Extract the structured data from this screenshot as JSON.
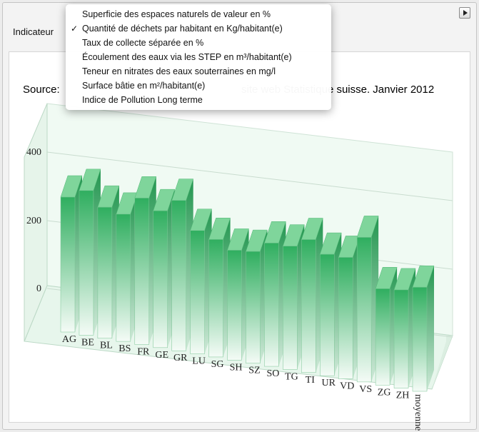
{
  "indicator": {
    "label": "Indicateur",
    "menu_items": [
      {
        "label": "Superficie des espaces naturels de valeur en %",
        "checked": false
      },
      {
        "label": "Quantité de déchets par habitant en Kg/habitant(e)",
        "checked": true
      },
      {
        "label": "Taux de collecte séparée en %",
        "checked": false
      },
      {
        "label": "Écoulement des eaux via les STEP en m³/habitant(e)",
        "checked": false
      },
      {
        "label": "Teneur en nitrates des eaux souterraines en mg/l",
        "checked": false
      },
      {
        "label": "Surface bâtie en m²/habitant(e)",
        "checked": false
      },
      {
        "label": "Indice de Pollution Long terme",
        "checked": false
      }
    ],
    "check_glyph": "✓"
  },
  "source_line": {
    "prefix": "Source:",
    "suffix": "site web Statistique suisse. Janvier 2012"
  },
  "colors": {
    "bar_top": "#2fae5f",
    "bar_bottom": "#f4fbf6",
    "bar_side": "#3a9e5c",
    "bar_cap": "#7fd59b",
    "floor": "#e7f6ec",
    "backwall": "#f0faf3"
  },
  "chart_data": {
    "type": "bar",
    "categories": [
      "AG",
      "BE",
      "BL",
      "BS",
      "FR",
      "GE",
      "GR",
      "LU",
      "SG",
      "SH",
      "SZ",
      "SO",
      "TG",
      "TI",
      "UR",
      "VD",
      "VS",
      "ZG",
      "ZH",
      "moyenne"
    ],
    "values": [
      350,
      375,
      340,
      330,
      380,
      355,
      390,
      320,
      305,
      285,
      290,
      320,
      320,
      345,
      315,
      315,
      375,
      250,
      255,
      270
    ],
    "y_ticks": [
      "0",
      "200",
      "400"
    ],
    "ylim": [
      0,
      500
    ],
    "grid": true
  }
}
